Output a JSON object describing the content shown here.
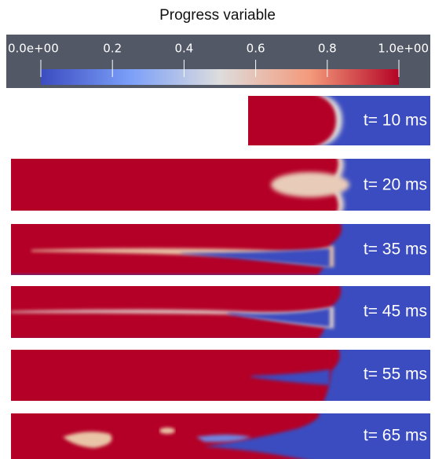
{
  "colorbar": {
    "title": "Progress variable",
    "range": [
      0,
      1
    ],
    "ticks": [
      {
        "value": 0,
        "label": "0.0e+00"
      },
      0.2,
      0.4,
      0.6,
      0.8,
      {
        "value": 1,
        "label": "1.0e+00"
      }
    ]
  },
  "panels": [
    {
      "label": "t= 10 ms"
    },
    {
      "label": "t= 20 ms"
    },
    {
      "label": "t= 35 ms"
    },
    {
      "label": "t= 45 ms"
    },
    {
      "label": "t= 55 ms"
    },
    {
      "label": "t= 65 ms"
    }
  ]
}
